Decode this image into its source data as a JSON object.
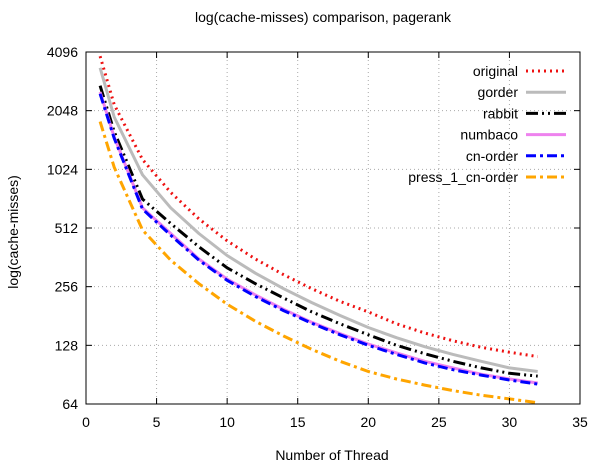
{
  "chart_data": {
    "type": "line",
    "title": "log(cache-misses) comparison, pagerank",
    "xlabel": "Number of Thread",
    "ylabel": "log(cache-misses)",
    "xlim": [
      0,
      35
    ],
    "ylim": [
      64,
      4096
    ],
    "yscale": "log2",
    "xticks": [
      0,
      5,
      10,
      15,
      20,
      25,
      30,
      35
    ],
    "yticks": [
      64,
      128,
      256,
      512,
      1024,
      2048,
      4096
    ],
    "grid": true,
    "legend_position": "top-right",
    "x": [
      1,
      2,
      4,
      6,
      8,
      10,
      12,
      14,
      16,
      18,
      20,
      22,
      24,
      26,
      28,
      30,
      32
    ],
    "series": [
      {
        "name": "original",
        "color": "#ee1111",
        "style": "dotted",
        "values": [
          3900,
          2200,
          1150,
          780,
          570,
          440,
          355,
          295,
          250,
          215,
          190,
          165,
          148,
          135,
          125,
          118,
          112
        ]
      },
      {
        "name": "gorder",
        "color": "#bbbbbb",
        "style": "solid",
        "values": [
          3400,
          1900,
          960,
          650,
          480,
          370,
          300,
          250,
          212,
          182,
          158,
          140,
          126,
          115,
          106,
          98,
          94
        ]
      },
      {
        "name": "rabbit",
        "color": "#000000",
        "style": "dash-dot-dot",
        "values": [
          2750,
          1600,
          720,
          540,
          410,
          320,
          265,
          224,
          190,
          165,
          145,
          128,
          116,
          106,
          98,
          92,
          89
        ]
      },
      {
        "name": "numbaco",
        "color": "#ee82ee",
        "style": "solid",
        "values": [
          2550,
          1500,
          650,
          480,
          355,
          280,
          232,
          196,
          168,
          147,
          130,
          117,
          106,
          98,
          91,
          86,
          82
        ]
      },
      {
        "name": "cn-order",
        "color": "#0000ff",
        "style": "dash-dot",
        "values": [
          2500,
          1480,
          640,
          470,
          350,
          276,
          228,
          193,
          166,
          145,
          128,
          115,
          104,
          96,
          90,
          85,
          81
        ]
      },
      {
        "name": "press_1_cn-order",
        "color": "#ffa500",
        "style": "dash-dot",
        "values": [
          1800,
          1050,
          500,
          350,
          265,
          208,
          170,
          143,
          122,
          106,
          94,
          86,
          80,
          75,
          71,
          68,
          65
        ]
      }
    ]
  }
}
